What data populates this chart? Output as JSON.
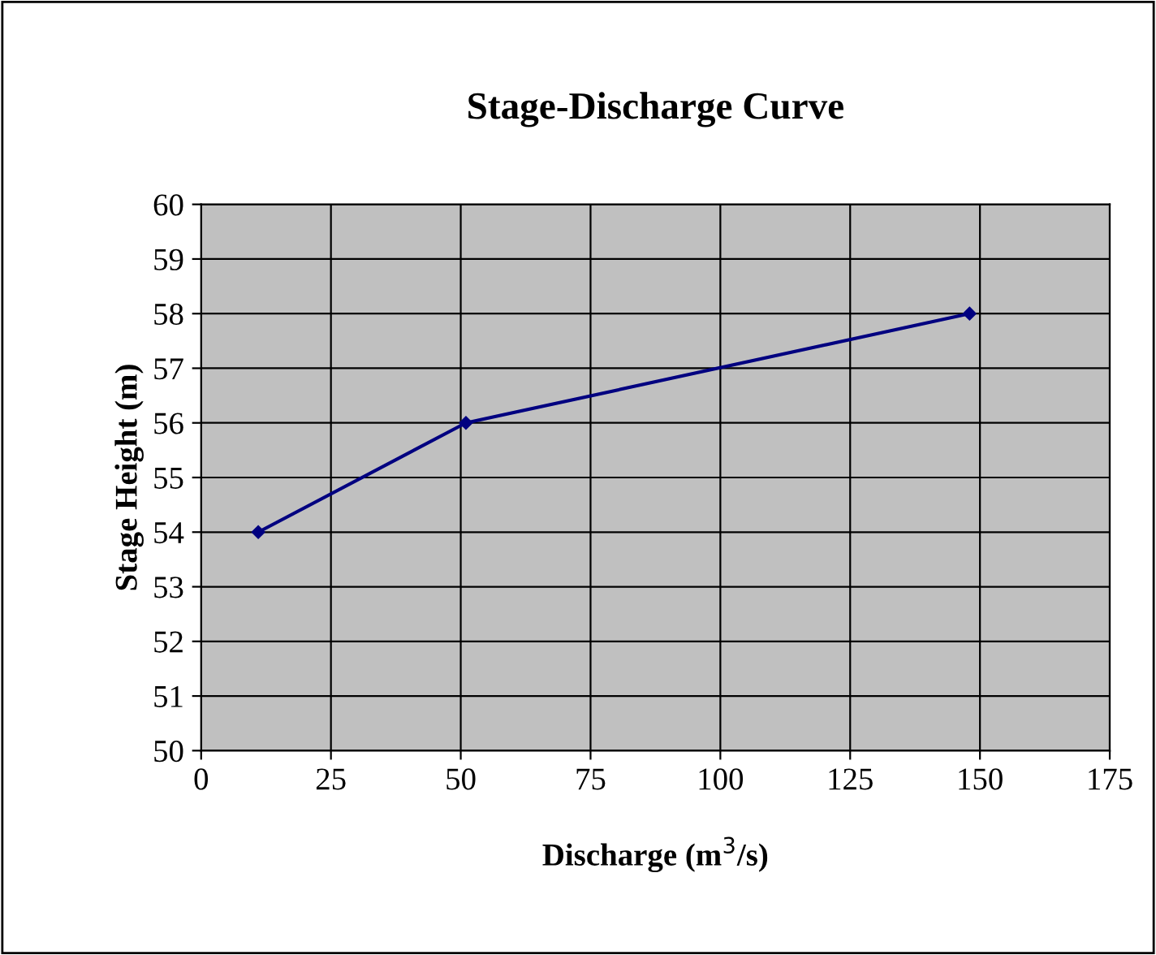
{
  "chart_data": {
    "type": "line",
    "title": "Stage-Discharge Curve",
    "xlabel": "Discharge (m$^{3}$/s)",
    "ylabel": "Stage Height (m)",
    "x": [
      11,
      51,
      148
    ],
    "series": [
      {
        "color": "#000080",
        "values": [
          54,
          56,
          58
        ]
      }
    ],
    "xlim": [
      0,
      175
    ],
    "xticks": [
      0,
      25,
      50,
      75,
      100,
      125,
      150,
      175
    ],
    "ylim": [
      50,
      60
    ],
    "yticks": [
      50,
      51,
      52,
      53,
      54,
      55,
      56,
      57,
      58,
      59,
      60
    ],
    "grid": true,
    "marker": "diamond",
    "line_style": "solid",
    "legend": false
  }
}
